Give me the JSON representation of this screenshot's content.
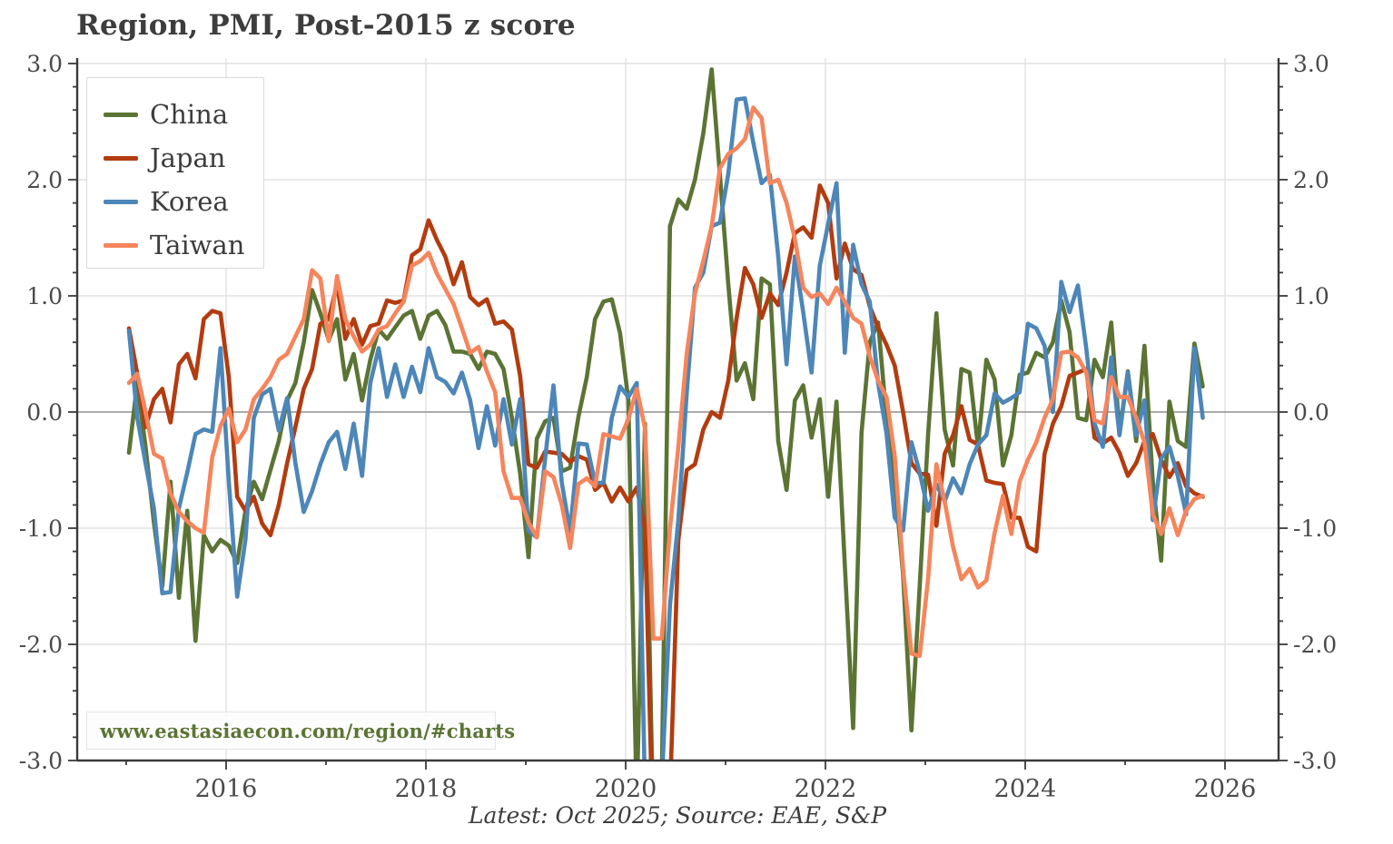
{
  "header": {
    "title": "Region, PMI, Post-2015 z score"
  },
  "watermark": {
    "text": "www.eastasiaecon.com/region/#charts"
  },
  "footer": {
    "text": "Latest: Oct 2025; Source: EAE, S&P"
  },
  "palette": {
    "title_text": "#3d3d3d",
    "tick_text": "#4a4a4a",
    "spine": "#3a3a3a",
    "grid": "#e2e2e2",
    "zero_line": "#8f8f8f",
    "watermark_text": "#5b7434"
  },
  "chart_data": {
    "type": "line",
    "title": "Region, PMI, Post-2015 z score",
    "xlabel": "",
    "ylabel": "z score",
    "frequency": "monthly",
    "x_start": "2015-01",
    "x_end": "2025-10",
    "ylim": [
      -3.0,
      3.0
    ],
    "grid": true,
    "legend_position": "upper left",
    "y_ticks": [
      {
        "v": 3,
        "label": "3.0"
      },
      {
        "v": 2,
        "label": "2.0"
      },
      {
        "v": 1,
        "label": "1.0"
      },
      {
        "v": 0,
        "label": "0.0"
      },
      {
        "v": -1,
        "label": "-1.0"
      },
      {
        "v": -2,
        "label": "-2.0"
      },
      {
        "v": -3,
        "label": "-3.0"
      }
    ],
    "x_ticks_major": [
      2016,
      2018,
      2020,
      2022,
      2024,
      2026
    ],
    "x_ticks_minor": [
      2015,
      2017,
      2019,
      2021,
      2023,
      2025
    ],
    "series": [
      {
        "name": "China",
        "color": "#5b7434",
        "values": [
          -0.35,
          0.25,
          -0.3,
          -0.95,
          -1.5,
          -0.6,
          -1.6,
          -0.85,
          -1.97,
          -1.06,
          -1.2,
          -1.1,
          -1.15,
          -1.3,
          -0.85,
          -0.6,
          -0.75,
          -0.5,
          -0.25,
          0.1,
          0.25,
          0.6,
          1.05,
          0.85,
          0.62,
          0.8,
          0.28,
          0.5,
          0.1,
          0.45,
          0.71,
          0.63,
          0.73,
          0.83,
          0.87,
          0.63,
          0.83,
          0.87,
          0.75,
          0.52,
          0.52,
          0.5,
          0.37,
          0.52,
          0.5,
          0.37,
          -0.05,
          -0.53,
          -1.25,
          -0.23,
          -0.08,
          -0.05,
          -0.51,
          -0.48,
          -0.04,
          0.3,
          0.8,
          0.95,
          0.97,
          0.68,
          0.1,
          -3.4,
          -0.1,
          -3.6,
          -3.2,
          1.6,
          1.83,
          1.75,
          2.0,
          2.4,
          2.95,
          2.04,
          1.1,
          0.27,
          0.42,
          0.11,
          1.15,
          1.1,
          -0.25,
          -0.67,
          0.1,
          0.23,
          -0.22,
          0.11,
          -0.73,
          0.09,
          -1.31,
          -2.72,
          -0.18,
          0.6,
          0.77,
          -0.05,
          -0.59,
          -1.4,
          -2.74,
          -1.5,
          -0.2,
          0.85,
          -0.15,
          -0.46,
          0.37,
          0.34,
          -0.3,
          0.45,
          0.28,
          -0.46,
          -0.2,
          0.32,
          0.34,
          0.51,
          0.47,
          0.6,
          0.96,
          0.69,
          -0.05,
          -0.07,
          0.45,
          0.3,
          0.77,
          -0.18,
          0.35,
          -0.25,
          0.57,
          -0.6,
          -1.28,
          0.09,
          -0.25,
          -0.3,
          0.59,
          0.22
        ]
      },
      {
        "name": "Japan",
        "color": "#b23c10",
        "values": [
          0.72,
          0.33,
          -0.13,
          0.11,
          0.2,
          -0.09,
          0.41,
          0.5,
          0.29,
          0.8,
          0.87,
          0.85,
          0.3,
          -0.73,
          -0.85,
          -0.73,
          -0.96,
          -1.06,
          -0.8,
          -0.44,
          -0.13,
          0.2,
          0.37,
          0.76,
          0.8,
          1.1,
          0.63,
          0.8,
          0.58,
          0.74,
          0.76,
          0.96,
          0.94,
          0.96,
          1.35,
          1.4,
          1.65,
          1.48,
          1.34,
          1.1,
          1.29,
          0.99,
          0.92,
          0.97,
          0.76,
          0.78,
          0.71,
          0.31,
          -0.45,
          -0.48,
          -0.34,
          -0.35,
          -0.36,
          -0.43,
          -0.38,
          -0.41,
          -0.67,
          -0.61,
          -0.77,
          -0.65,
          -0.77,
          -0.65,
          -1.0,
          -3.8,
          -4.0,
          -3.3,
          -1.1,
          -0.5,
          -0.45,
          -0.15,
          0.0,
          -0.05,
          0.27,
          0.81,
          1.24,
          1.1,
          0.81,
          1.02,
          0.92,
          1.2,
          1.54,
          1.59,
          1.5,
          1.95,
          1.8,
          1.15,
          1.45,
          1.23,
          1.18,
          0.91,
          0.73,
          0.58,
          0.4,
          0.0,
          -0.44,
          -0.53,
          -0.54,
          -0.98,
          -0.36,
          -0.2,
          0.05,
          -0.24,
          -0.28,
          -0.59,
          -0.61,
          -0.62,
          -0.91,
          -0.91,
          -1.16,
          -1.2,
          -0.36,
          -0.1,
          0.05,
          0.31,
          0.34,
          0.37,
          -0.22,
          -0.27,
          -0.22,
          -0.35,
          -0.55,
          -0.44,
          -0.25,
          -0.19,
          -0.41,
          -0.56,
          -0.44,
          -0.64,
          -0.7,
          -0.73
        ]
      },
      {
        "name": "Korea",
        "color": "#4d86b8",
        "values": [
          0.7,
          -0.05,
          -0.44,
          -0.83,
          -1.56,
          -1.55,
          -0.83,
          -0.52,
          -0.19,
          -0.15,
          -0.17,
          0.55,
          -0.6,
          -1.59,
          -1.1,
          -0.05,
          0.15,
          0.2,
          -0.16,
          0.12,
          -0.44,
          -0.86,
          -0.68,
          -0.45,
          -0.26,
          -0.17,
          -0.49,
          -0.1,
          -0.55,
          0.25,
          0.55,
          0.13,
          0.41,
          0.13,
          0.39,
          0.17,
          0.55,
          0.3,
          0.26,
          0.16,
          0.34,
          0.1,
          -0.31,
          0.05,
          -0.29,
          0.11,
          -0.28,
          0.11,
          -1.02,
          -1.08,
          -0.4,
          0.23,
          -0.61,
          -1.03,
          -0.27,
          -0.28,
          -0.61,
          -0.61,
          -0.05,
          0.22,
          0.13,
          0.25,
          -3.3,
          -3.7,
          -3.2,
          -1.66,
          -0.93,
          0.16,
          1.07,
          1.2,
          1.6,
          1.63,
          2.05,
          2.69,
          2.7,
          2.32,
          1.97,
          2.04,
          1.34,
          0.41,
          1.34,
          0.86,
          0.34,
          1.26,
          1.62,
          1.97,
          0.51,
          1.44,
          1.1,
          0.95,
          0.25,
          -0.18,
          -0.91,
          -1.02,
          -0.26,
          -0.52,
          -0.85,
          -0.62,
          -0.77,
          -0.57,
          -0.7,
          -0.45,
          -0.28,
          -0.2,
          0.16,
          0.08,
          0.12,
          0.17,
          0.76,
          0.72,
          0.57,
          0.0,
          1.12,
          0.86,
          1.09,
          0.55,
          -0.1,
          -0.3,
          0.47,
          -0.2,
          0.34,
          -0.2,
          0.1,
          -0.93,
          -0.4,
          -0.3,
          -0.55,
          -0.88,
          0.55,
          -0.05
        ]
      },
      {
        "name": "Taiwan",
        "color": "#f6855c",
        "values": [
          0.25,
          0.33,
          0.0,
          -0.36,
          -0.4,
          -0.7,
          -0.86,
          -0.94,
          -1.0,
          -1.04,
          -0.39,
          -0.12,
          0.03,
          -0.26,
          -0.15,
          0.11,
          0.2,
          0.3,
          0.45,
          0.5,
          0.65,
          0.8,
          1.22,
          1.15,
          0.61,
          1.17,
          0.8,
          0.65,
          0.52,
          0.58,
          0.71,
          0.74,
          0.85,
          0.95,
          1.26,
          1.3,
          1.37,
          1.19,
          1.06,
          0.93,
          0.72,
          0.51,
          0.56,
          0.35,
          0.17,
          -0.51,
          -0.74,
          -0.74,
          -0.95,
          -1.08,
          -0.51,
          -0.56,
          -0.8,
          -1.17,
          -0.62,
          -0.57,
          -0.64,
          -0.19,
          -0.21,
          -0.23,
          -0.06,
          0.2,
          -0.14,
          -1.95,
          -1.95,
          -1.0,
          -0.3,
          0.5,
          1.02,
          1.3,
          1.6,
          2.1,
          2.22,
          2.27,
          2.35,
          2.62,
          2.53,
          1.97,
          2.0,
          1.8,
          1.49,
          1.07,
          0.99,
          1.02,
          0.93,
          1.07,
          0.95,
          0.81,
          0.76,
          0.48,
          0.27,
          0.13,
          -0.38,
          -1.35,
          -2.08,
          -2.1,
          -1.44,
          -0.45,
          -0.77,
          -1.16,
          -1.44,
          -1.35,
          -1.51,
          -1.45,
          -1.04,
          -0.72,
          -1.05,
          -0.6,
          -0.41,
          -0.26,
          -0.05,
          0.11,
          0.51,
          0.52,
          0.47,
          0.34,
          -0.07,
          -0.1,
          0.3,
          0.13,
          0.13,
          -0.05,
          -0.26,
          -0.88,
          -1.05,
          -0.83,
          -1.06,
          -0.85,
          -0.75,
          -0.72
        ]
      }
    ]
  }
}
